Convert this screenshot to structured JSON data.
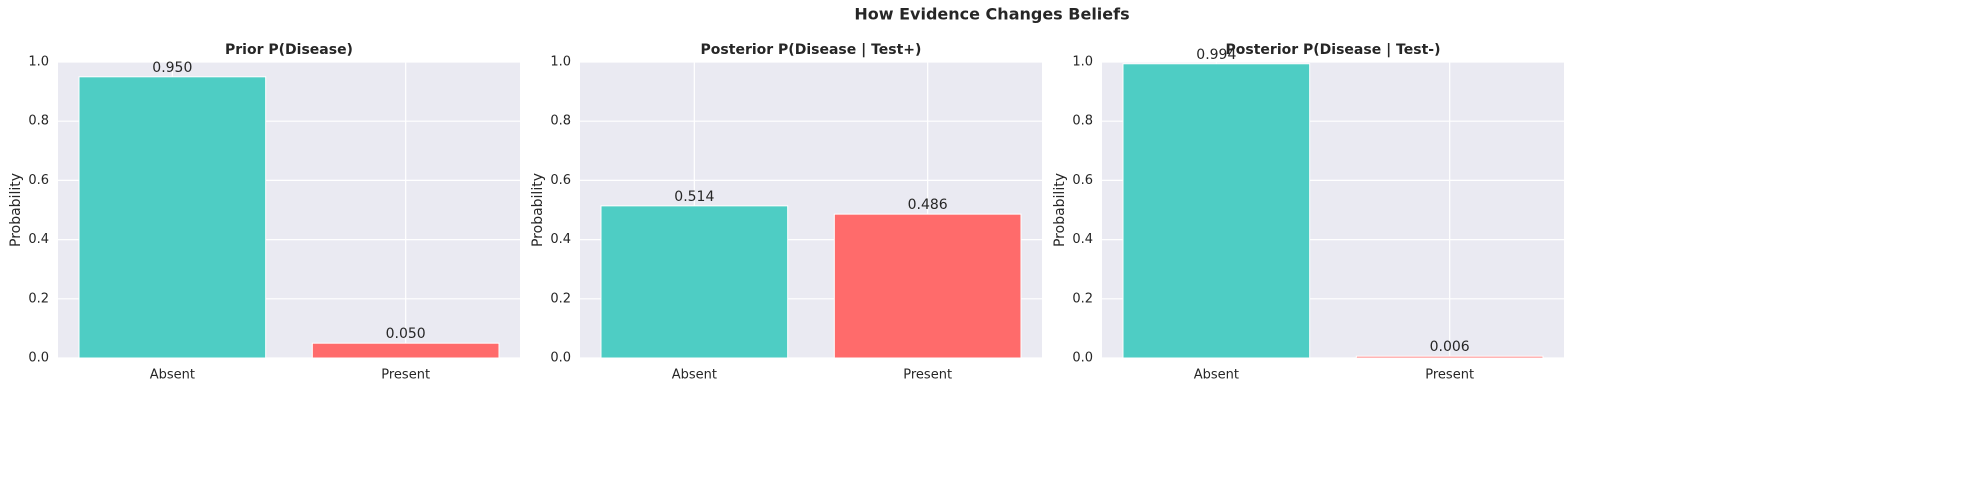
{
  "title": "How Evidence Changes Beliefs",
  "chart_data": [
    {
      "type": "bar",
      "title": "Prior P(Disease)",
      "ylabel": "Probability",
      "categories": [
        "Absent",
        "Present"
      ],
      "values": [
        0.95,
        0.05
      ],
      "value_labels": [
        "0.950",
        "0.050"
      ],
      "colors": [
        "#4ecdc4",
        "#ff6b6b"
      ],
      "ylim": [
        0,
        1
      ],
      "yticks": [
        {
          "value": 0,
          "label": "0.0"
        },
        {
          "value": 0.2,
          "label": "0.2"
        },
        {
          "value": 0.4,
          "label": "0.4"
        },
        {
          "value": 0.6,
          "label": "0.6"
        },
        {
          "value": 0.8,
          "label": "0.8"
        },
        {
          "value": 1,
          "label": "1.0"
        }
      ],
      "grid": true
    },
    {
      "type": "bar",
      "title": "Posterior P(Disease | Test+)",
      "ylabel": "Probability",
      "categories": [
        "Absent",
        "Present"
      ],
      "values": [
        0.514,
        0.486
      ],
      "value_labels": [
        "0.514",
        "0.486"
      ],
      "colors": [
        "#4ecdc4",
        "#ff6b6b"
      ],
      "ylim": [
        0,
        1
      ],
      "yticks": [
        {
          "value": 0,
          "label": "0.0"
        },
        {
          "value": 0.2,
          "label": "0.2"
        },
        {
          "value": 0.4,
          "label": "0.4"
        },
        {
          "value": 0.6,
          "label": "0.6"
        },
        {
          "value": 0.8,
          "label": "0.8"
        },
        {
          "value": 1,
          "label": "1.0"
        }
      ],
      "grid": true
    },
    {
      "type": "bar",
      "title": "Posterior P(Disease | Test-)",
      "ylabel": "Probability",
      "categories": [
        "Absent",
        "Present"
      ],
      "values": [
        0.994,
        0.006
      ],
      "value_labels": [
        "0.994",
        "0.006"
      ],
      "colors": [
        "#4ecdc4",
        "#ff6b6b"
      ],
      "ylim": [
        0,
        1
      ],
      "yticks": [
        {
          "value": 0,
          "label": "0.0"
        },
        {
          "value": 0.2,
          "label": "0.2"
        },
        {
          "value": 0.4,
          "label": "0.4"
        },
        {
          "value": 0.6,
          "label": "0.6"
        },
        {
          "value": 0.8,
          "label": "0.8"
        },
        {
          "value": 1,
          "label": "1.0"
        }
      ],
      "grid": true
    }
  ]
}
